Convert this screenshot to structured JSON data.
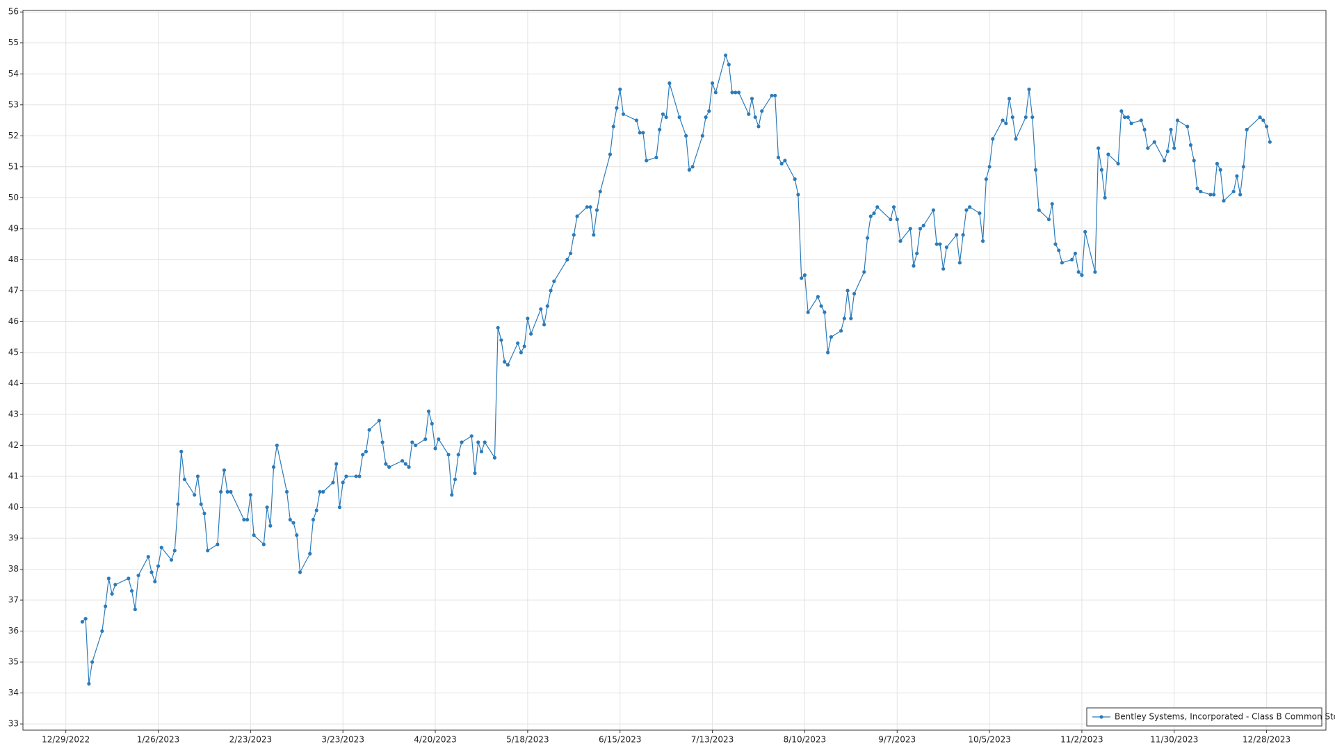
{
  "chart_data": {
    "type": "line",
    "x": [
      "1/3/2023",
      "1/4/2023",
      "1/5/2023",
      "1/6/2023",
      "1/9/2023",
      "1/10/2023",
      "1/11/2023",
      "1/12/2023",
      "1/13/2023",
      "1/17/2023",
      "1/18/2023",
      "1/19/2023",
      "1/20/2023",
      "1/23/2023",
      "1/24/2023",
      "1/25/2023",
      "1/26/2023",
      "1/27/2023",
      "1/30/2023",
      "1/31/2023",
      "2/1/2023",
      "2/2/2023",
      "2/3/2023",
      "2/6/2023",
      "2/7/2023",
      "2/8/2023",
      "2/9/2023",
      "2/10/2023",
      "2/13/2023",
      "2/14/2023",
      "2/15/2023",
      "2/16/2023",
      "2/17/2023",
      "2/21/2023",
      "2/22/2023",
      "2/23/2023",
      "2/24/2023",
      "2/27/2023",
      "2/28/2023",
      "3/1/2023",
      "3/2/2023",
      "3/3/2023",
      "3/6/2023",
      "3/7/2023",
      "3/8/2023",
      "3/9/2023",
      "3/10/2023",
      "3/13/2023",
      "3/14/2023",
      "3/15/2023",
      "3/16/2023",
      "3/17/2023",
      "3/20/2023",
      "3/21/2023",
      "3/22/2023",
      "3/23/2023",
      "3/24/2023",
      "3/27/2023",
      "3/28/2023",
      "3/29/2023",
      "3/30/2023",
      "3/31/2023",
      "4/3/2023",
      "4/4/2023",
      "4/5/2023",
      "4/6/2023",
      "4/10/2023",
      "4/11/2023",
      "4/12/2023",
      "4/13/2023",
      "4/14/2023",
      "4/17/2023",
      "4/18/2023",
      "4/19/2023",
      "4/20/2023",
      "4/21/2023",
      "4/24/2023",
      "4/25/2023",
      "4/26/2023",
      "4/27/2023",
      "4/28/2023",
      "5/1/2023",
      "5/2/2023",
      "5/3/2023",
      "5/4/2023",
      "5/5/2023",
      "5/8/2023",
      "5/9/2023",
      "5/10/2023",
      "5/11/2023",
      "5/12/2023",
      "5/15/2023",
      "5/16/2023",
      "5/17/2023",
      "5/18/2023",
      "5/19/2023",
      "5/22/2023",
      "5/23/2023",
      "5/24/2023",
      "5/25/2023",
      "5/26/2023",
      "5/30/2023",
      "5/31/2023",
      "6/1/2023",
      "6/2/2023",
      "6/5/2023",
      "6/6/2023",
      "6/7/2023",
      "6/8/2023",
      "6/9/2023",
      "6/12/2023",
      "6/13/2023",
      "6/14/2023",
      "6/15/2023",
      "6/16/2023",
      "6/20/2023",
      "6/21/2023",
      "6/22/2023",
      "6/23/2023",
      "6/26/2023",
      "6/27/2023",
      "6/28/2023",
      "6/29/2023",
      "6/30/2023",
      "7/3/2023",
      "7/5/2023",
      "7/6/2023",
      "7/7/2023",
      "7/10/2023",
      "7/11/2023",
      "7/12/2023",
      "7/13/2023",
      "7/14/2023",
      "7/17/2023",
      "7/18/2023",
      "7/19/2023",
      "7/20/2023",
      "7/21/2023",
      "7/24/2023",
      "7/25/2023",
      "7/26/2023",
      "7/27/2023",
      "7/28/2023",
      "7/31/2023",
      "8/1/2023",
      "8/2/2023",
      "8/3/2023",
      "8/4/2023",
      "8/7/2023",
      "8/8/2023",
      "8/9/2023",
      "8/10/2023",
      "8/11/2023",
      "8/14/2023",
      "8/15/2023",
      "8/16/2023",
      "8/17/2023",
      "8/18/2023",
      "8/21/2023",
      "8/22/2023",
      "8/23/2023",
      "8/24/2023",
      "8/25/2023",
      "8/28/2023",
      "8/29/2023",
      "8/30/2023",
      "8/31/2023",
      "9/1/2023",
      "9/5/2023",
      "9/6/2023",
      "9/7/2023",
      "9/8/2023",
      "9/11/2023",
      "9/12/2023",
      "9/13/2023",
      "9/14/2023",
      "9/15/2023",
      "9/18/2023",
      "9/19/2023",
      "9/20/2023",
      "9/21/2023",
      "9/22/2023",
      "9/25/2023",
      "9/26/2023",
      "9/27/2023",
      "9/28/2023",
      "9/29/2023",
      "10/2/2023",
      "10/3/2023",
      "10/4/2023",
      "10/5/2023",
      "10/6/2023",
      "10/9/2023",
      "10/10/2023",
      "10/11/2023",
      "10/12/2023",
      "10/13/2023",
      "10/16/2023",
      "10/17/2023",
      "10/18/2023",
      "10/19/2023",
      "10/20/2023",
      "10/23/2023",
      "10/24/2023",
      "10/25/2023",
      "10/26/2023",
      "10/27/2023",
      "10/30/2023",
      "10/31/2023",
      "11/1/2023",
      "11/2/2023",
      "11/3/2023",
      "11/6/2023",
      "11/7/2023",
      "11/8/2023",
      "11/9/2023",
      "11/10/2023",
      "11/13/2023",
      "11/14/2023",
      "11/15/2023",
      "11/16/2023",
      "11/17/2023",
      "11/20/2023",
      "11/21/2023",
      "11/22/2023",
      "11/24/2023",
      "11/27/2023",
      "11/28/2023",
      "11/29/2023",
      "11/30/2023",
      "12/1/2023",
      "12/4/2023",
      "12/5/2023",
      "12/6/2023",
      "12/7/2023",
      "12/8/2023",
      "12/11/2023",
      "12/12/2023",
      "12/13/2023",
      "12/14/2023",
      "12/15/2023",
      "12/18/2023",
      "12/19/2023",
      "12/20/2023",
      "12/21/2023",
      "12/22/2023",
      "12/26/2023",
      "12/27/2023",
      "12/28/2023",
      "12/29/2023"
    ],
    "series": [
      {
        "name": "Bentley Systems, Incorporated - Class B Common Stock",
        "color": "#2b7bba",
        "values": [
          36.3,
          36.4,
          34.3,
          35.0,
          36.0,
          36.8,
          37.7,
          37.2,
          37.5,
          37.7,
          37.3,
          36.7,
          37.8,
          38.4,
          37.9,
          37.6,
          38.1,
          38.7,
          38.3,
          38.6,
          40.1,
          41.8,
          40.9,
          40.4,
          41.0,
          40.1,
          39.8,
          38.6,
          38.8,
          40.5,
          41.2,
          40.5,
          40.5,
          39.6,
          39.6,
          40.4,
          39.1,
          38.8,
          40.0,
          39.4,
          41.3,
          42.0,
          40.5,
          39.6,
          39.5,
          39.1,
          37.9,
          38.5,
          39.6,
          39.9,
          40.5,
          40.5,
          40.8,
          41.4,
          40.0,
          40.8,
          41.0,
          41.0,
          41.0,
          41.7,
          41.8,
          42.5,
          42.8,
          42.1,
          41.4,
          41.3,
          41.5,
          41.4,
          41.3,
          42.1,
          42.0,
          42.2,
          43.1,
          42.7,
          41.9,
          42.2,
          41.7,
          40.4,
          40.9,
          41.7,
          42.1,
          42.3,
          41.1,
          42.1,
          41.8,
          42.1,
          41.6,
          45.8,
          45.4,
          44.7,
          44.6,
          45.3,
          45.0,
          45.2,
          46.1,
          45.6,
          46.4,
          45.9,
          46.5,
          47.0,
          47.3,
          48.0,
          48.2,
          48.8,
          49.4,
          49.7,
          49.7,
          48.8,
          49.6,
          50.2,
          51.4,
          52.3,
          52.9,
          53.5,
          52.7,
          52.5,
          52.1,
          52.1,
          51.2,
          51.3,
          52.2,
          52.7,
          52.6,
          53.7,
          52.6,
          52.0,
          50.9,
          51.0,
          52.0,
          52.6,
          52.8,
          53.7,
          53.4,
          54.6,
          54.3,
          53.4,
          53.4,
          53.4,
          52.7,
          53.2,
          52.6,
          52.3,
          52.8,
          53.3,
          53.3,
          51.3,
          51.1,
          51.2,
          50.6,
          50.1,
          47.4,
          47.5,
          46.3,
          46.8,
          46.5,
          46.3,
          45.0,
          45.5,
          45.7,
          46.1,
          47.0,
          46.1,
          46.9,
          47.6,
          48.7,
          49.4,
          49.5,
          49.7,
          49.3,
          49.7,
          49.3,
          48.6,
          49.0,
          47.8,
          48.2,
          49.0,
          49.1,
          49.6,
          48.5,
          48.5,
          47.7,
          48.4,
          48.8,
          47.9,
          48.8,
          49.6,
          49.7,
          49.5,
          48.6,
          50.6,
          51.0,
          51.9,
          52.5,
          52.4,
          53.2,
          52.6,
          51.9,
          52.6,
          53.5,
          52.6,
          50.9,
          49.6,
          49.3,
          49.8,
          48.5,
          48.3,
          47.9,
          48.0,
          48.2,
          47.6,
          47.5,
          48.9,
          47.6,
          51.6,
          50.9,
          50.0,
          51.4,
          51.1,
          52.8,
          52.6,
          52.6,
          52.4,
          52.5,
          52.2,
          51.6,
          51.8,
          51.2,
          51.5,
          52.2,
          51.6,
          52.5,
          52.3,
          51.7,
          51.2,
          50.3,
          50.2,
          50.1,
          50.1,
          51.1,
          50.9,
          49.9,
          50.2,
          50.7,
          50.1,
          51.0,
          52.2,
          52.6,
          52.5,
          52.3,
          51.8
        ]
      }
    ],
    "xlim": [
      "12/16/2022",
      "1/15/2024"
    ],
    "xticks": [
      "12/29/2022",
      "1/26/2023",
      "2/23/2023",
      "3/23/2023",
      "4/20/2023",
      "5/18/2023",
      "6/15/2023",
      "7/13/2023",
      "8/10/2023",
      "9/7/2023",
      "10/5/2023",
      "11/2/2023",
      "11/30/2023",
      "12/28/2023"
    ],
    "ylim": [
      32.8,
      56.05
    ],
    "yticks": [
      33,
      34,
      35,
      36,
      37,
      38,
      39,
      40,
      41,
      42,
      43,
      44,
      45,
      46,
      47,
      48,
      49,
      50,
      51,
      52,
      53,
      54,
      55,
      56
    ],
    "grid": true,
    "legend": "lower right"
  }
}
